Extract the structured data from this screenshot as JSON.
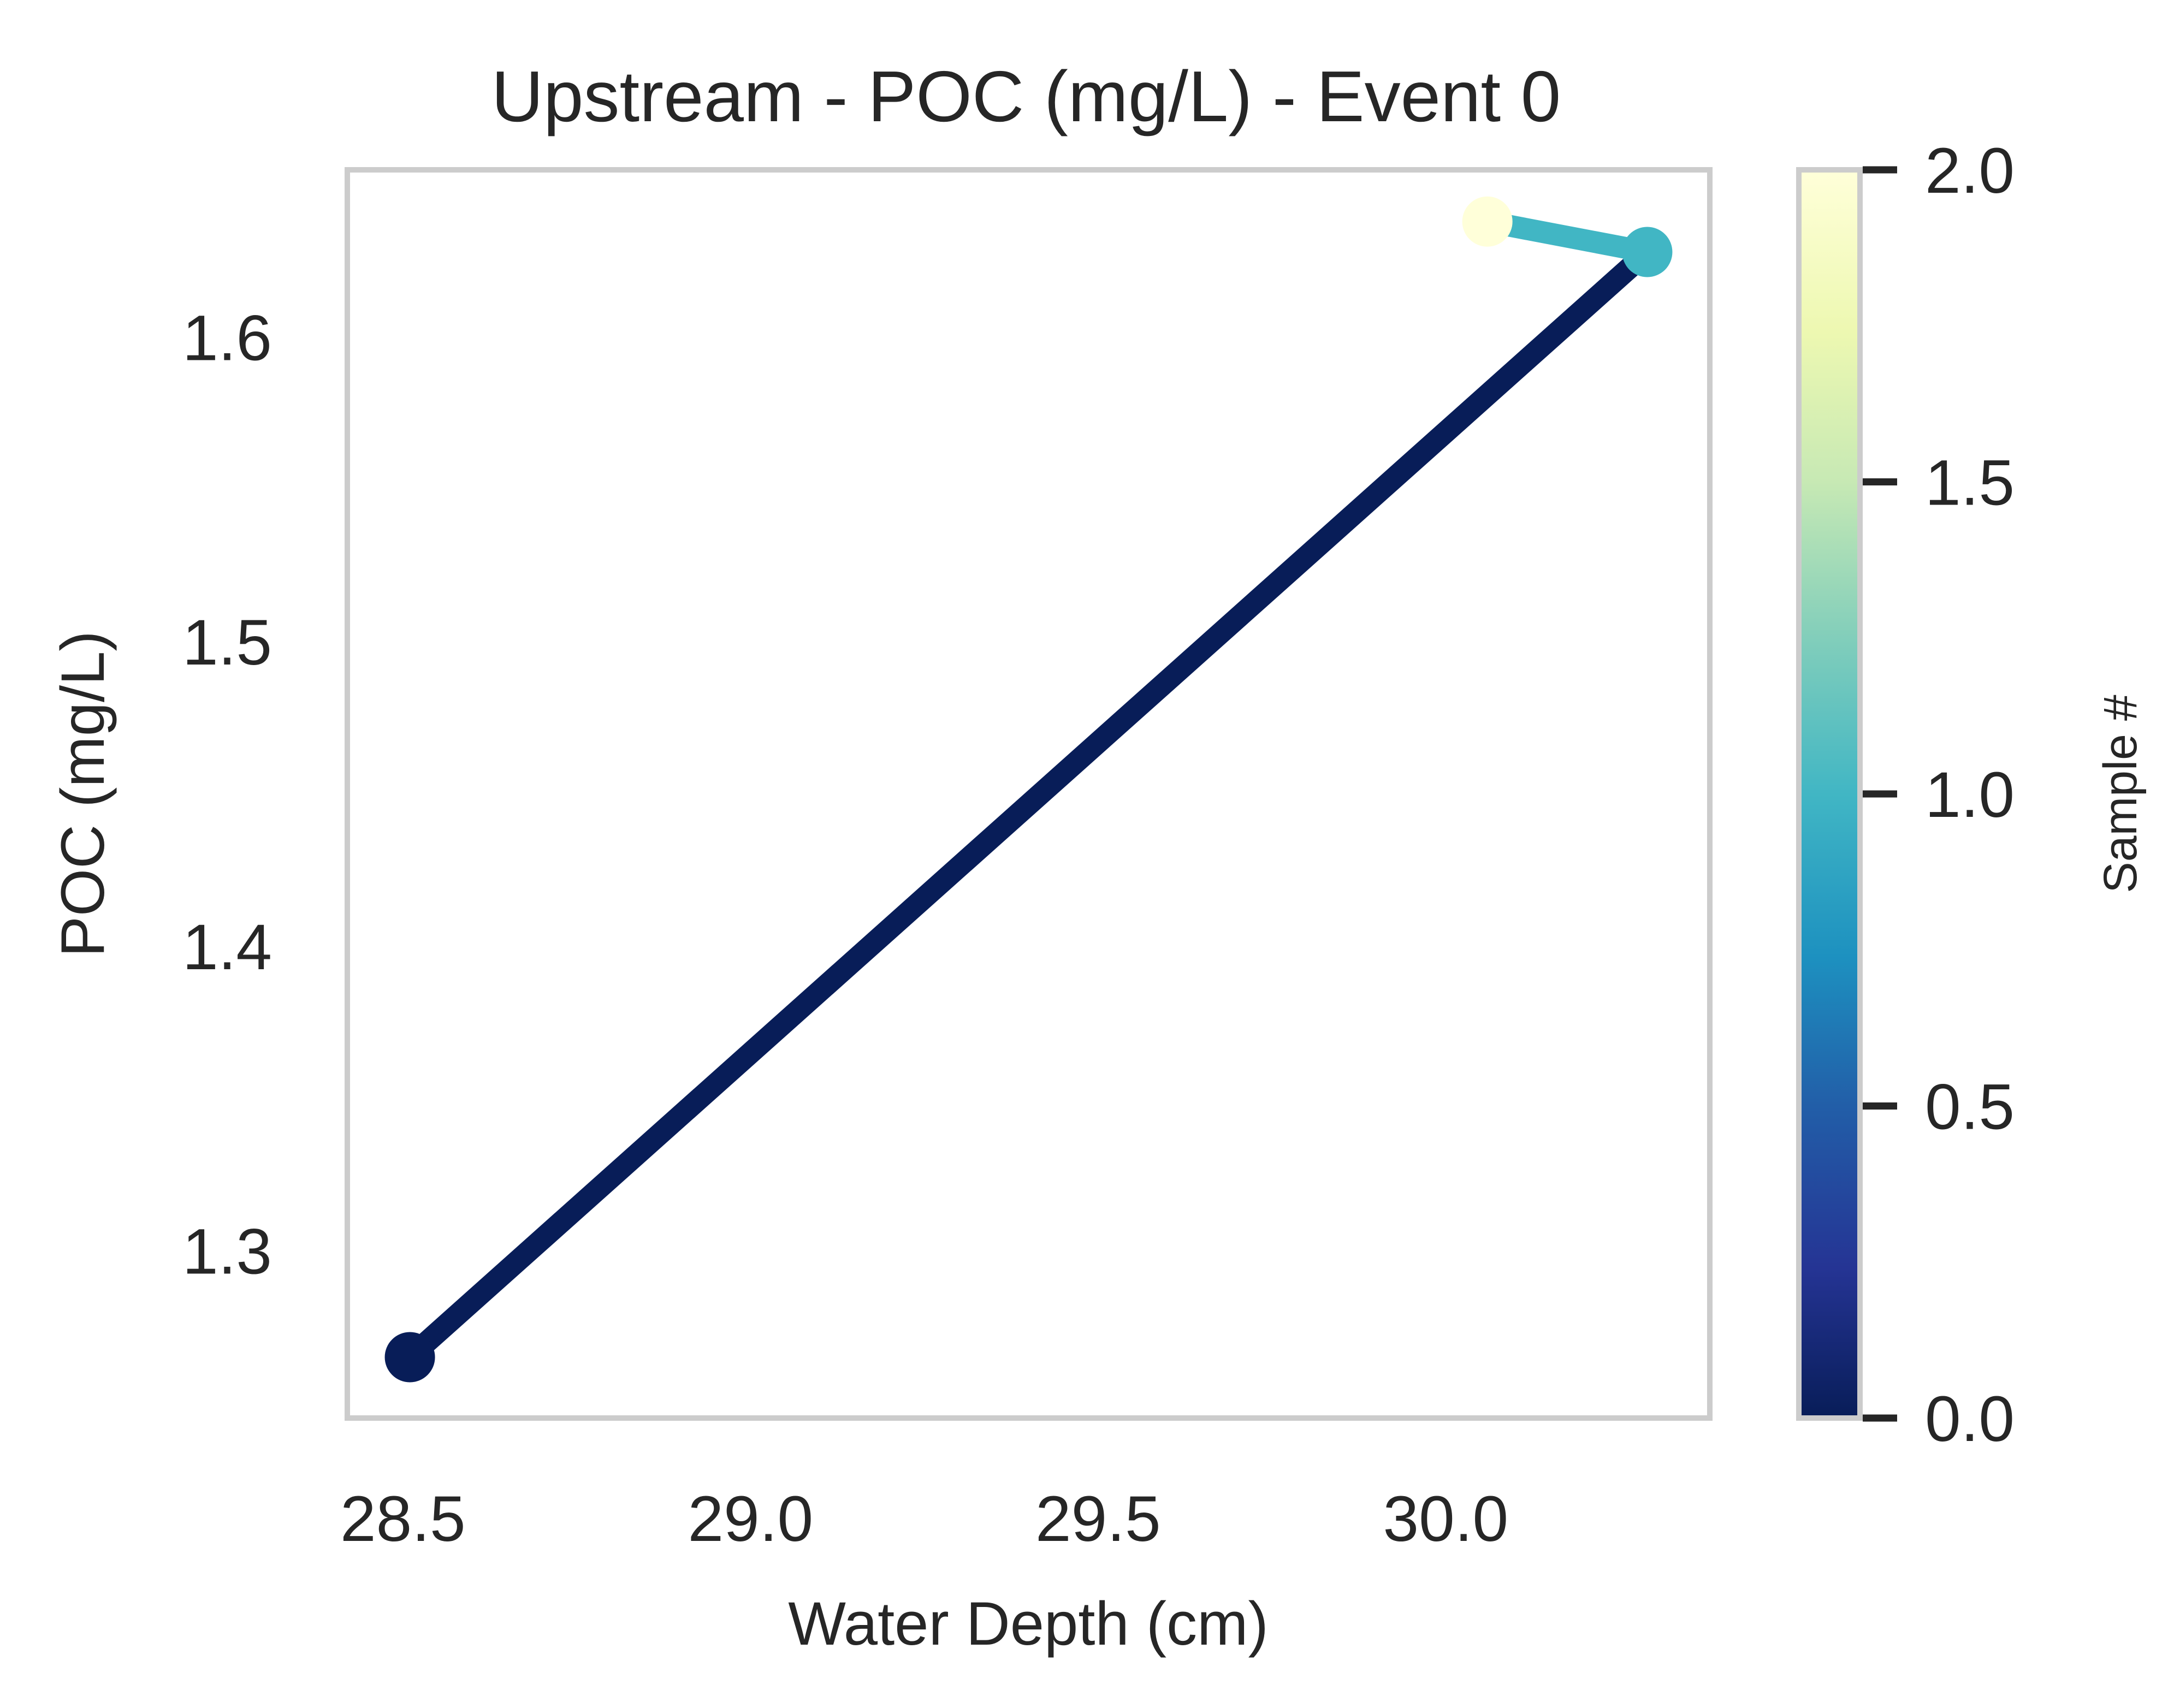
{
  "chart_data": {
    "type": "line",
    "title": "Upstream - POC (mg/L) - Event 0",
    "xlabel": "Water Depth (cm)",
    "ylabel": "POC (mg/L)",
    "xlim": [
      28.42,
      30.38
    ],
    "ylim": [
      1.245,
      1.655
    ],
    "x_ticks": [
      28.5,
      29.0,
      29.5,
      30.0
    ],
    "x_tick_labels": [
      "28.5",
      "29.0",
      "29.5",
      "30.0"
    ],
    "y_ticks": [
      1.3,
      1.4,
      1.5,
      1.6
    ],
    "y_tick_labels": [
      "1.3",
      "1.4",
      "1.5",
      "1.6"
    ],
    "grid": false,
    "points": [
      {
        "x": 28.51,
        "y": 1.265,
        "sample": 0
      },
      {
        "x": 30.29,
        "y": 1.628,
        "sample": 1
      },
      {
        "x": 30.06,
        "y": 1.638,
        "sample": 2
      }
    ],
    "colorbar": {
      "label": "Sample #",
      "colormap": "YlGnBu_r",
      "range": [
        0.0,
        2.0
      ],
      "ticks": [
        0.0,
        0.5,
        1.0,
        1.5,
        2.0
      ],
      "tick_labels": [
        "0.0",
        "0.5",
        "1.0",
        "1.5",
        "2.0"
      ]
    },
    "colors": {
      "axes_edge": "#cccccc",
      "text": "#262626",
      "tick_mark": "#262626"
    }
  }
}
